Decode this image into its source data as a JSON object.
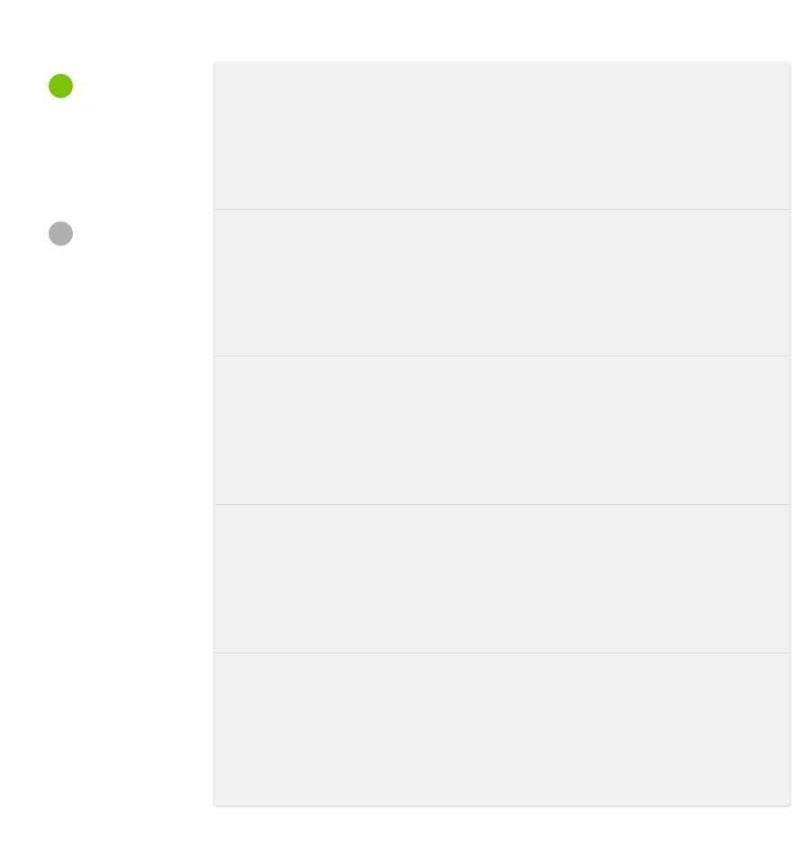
{
  "status_indicators": [
    {
      "state": "active",
      "color": "#7dc20a"
    },
    {
      "state": "inactive",
      "color": "#b0b0b0"
    }
  ],
  "panel": {
    "background": "#f1f1f1",
    "divider_color": "#d9d9d9",
    "rows": 5
  }
}
